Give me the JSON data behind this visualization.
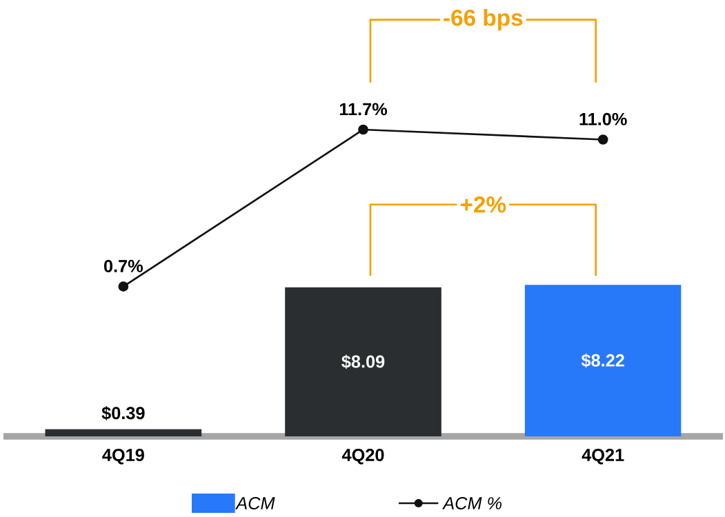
{
  "chart_data": {
    "type": "bar",
    "categories": [
      "4Q19",
      "4Q20",
      "4Q21"
    ],
    "series": [
      {
        "name": "ACM",
        "color": "#2878fa",
        "colors": [
          "#2b2e30",
          "#2b2e30",
          "#2878fa"
        ],
        "values": [
          0.39,
          8.09,
          8.22
        ],
        "value_labels": [
          "$0.39",
          "$8.09",
          "$8.22"
        ]
      },
      {
        "name": "ACM %",
        "type": "line",
        "axis": "y2",
        "color": "#111111",
        "marker": "circle",
        "values": [
          0.7,
          11.7,
          11.0
        ],
        "value_labels": [
          "0.7%",
          "11.7%",
          "11.0%"
        ]
      }
    ],
    "annotations": [
      "-66 bps",
      "+2%"
    ],
    "ylim": [
      0,
      23.3
    ],
    "y2lim": [
      -9.8,
      20.3
    ],
    "legend": "bottom"
  }
}
